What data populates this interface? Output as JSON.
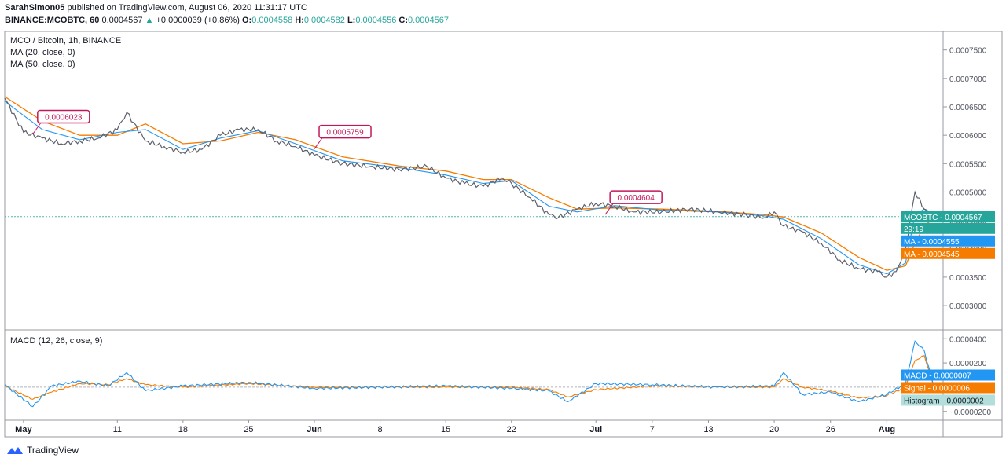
{
  "header": {
    "author": "SarahSimon05",
    "published_text": "published on TradingView.com, August 06, 2020 11:31:17 UTC",
    "symbol_line": "BINANCE:MCOBTC, 60",
    "last": "0.0004567",
    "change": "+0.0000039 (+0.86%)",
    "o_label": "O:",
    "o": "0.0004558",
    "h_label": "H:",
    "h": "0.0004582",
    "l_label": "L:",
    "l": "0.0004556",
    "c_label": "C:",
    "c": "0.0004567"
  },
  "legend": {
    "title": "MCO / Bitcoin, 1h, BINANCE",
    "ma20": "MA (20, close, 0)",
    "ma50": "MA (50, close, 0)",
    "macd": "MACD (12, 26, close, 9)"
  },
  "footer": {
    "brand": "TradingView"
  },
  "colors": {
    "price": "#26a69a",
    "ma20": "#2196f3",
    "ma50": "#f57c00",
    "callout": "#c2185b",
    "macd_label": "#2196f3",
    "signal_label": "#f57c00",
    "hist_label": "#b2dfdb",
    "last_label": "#26a69a"
  },
  "chart_data": [
    {
      "type": "line",
      "title": "MCO / Bitcoin, 1h, BINANCE",
      "x_ticks": [
        "May",
        "11",
        "18",
        "25",
        "Jun",
        "8",
        "15",
        "22",
        "Jul",
        "7",
        "13",
        "20",
        "26",
        "Aug"
      ],
      "y_ticks": [
        "0.0007500",
        "0.0007000",
        "0.0006500",
        "0.0006000",
        "0.0005500",
        "0.0005000",
        "0.0004500",
        "0.0004000",
        "0.0003500",
        "0.0003000"
      ],
      "ylim": [
        0.00026,
        0.00078
      ],
      "series": [
        {
          "name": "MCOBTC",
          "x": [
            "2020-04-29",
            "2020-05-01",
            "2020-05-03",
            "2020-05-05",
            "2020-05-07",
            "2020-05-09",
            "2020-05-11",
            "2020-05-12",
            "2020-05-14",
            "2020-05-16",
            "2020-05-18",
            "2020-05-20",
            "2020-05-22",
            "2020-05-24",
            "2020-05-26",
            "2020-05-28",
            "2020-05-30",
            "2020-06-01",
            "2020-06-04",
            "2020-06-07",
            "2020-06-10",
            "2020-06-13",
            "2020-06-15",
            "2020-06-17",
            "2020-06-19",
            "2020-06-21",
            "2020-06-22",
            "2020-06-24",
            "2020-06-26",
            "2020-06-27",
            "2020-06-29",
            "2020-07-01",
            "2020-07-03",
            "2020-07-05",
            "2020-07-08",
            "2020-07-11",
            "2020-07-14",
            "2020-07-17",
            "2020-07-19",
            "2020-07-20",
            "2020-07-21",
            "2020-07-23",
            "2020-07-25",
            "2020-07-27",
            "2020-07-29",
            "2020-07-31",
            "2020-08-01",
            "2020-08-02",
            "2020-08-03",
            "2020-08-04",
            "2020-08-05",
            "2020-08-06"
          ],
          "y": [
            0.000665,
            0.000605,
            0.000595,
            0.000585,
            0.00059,
            0.000595,
            0.00061,
            0.00064,
            0.00059,
            0.00058,
            0.00057,
            0.000575,
            0.0006,
            0.00061,
            0.00061,
            0.00059,
            0.00058,
            0.000565,
            0.00055,
            0.000545,
            0.00054,
            0.000545,
            0.000525,
            0.000515,
            0.00051,
            0.000525,
            0.000515,
            0.00049,
            0.00046,
            0.000455,
            0.00047,
            0.00048,
            0.000475,
            0.000465,
            0.000465,
            0.00047,
            0.000465,
            0.00046,
            0.000455,
            0.000465,
            0.00044,
            0.00043,
            0.00041,
            0.00038,
            0.000365,
            0.00036,
            0.00035,
            0.00036,
            0.0004,
            0.0005,
            0.00047,
            0.0004567
          ]
        },
        {
          "name": "MA",
          "x": [
            "2020-04-29",
            "2020-05-03",
            "2020-05-07",
            "2020-05-11",
            "2020-05-14",
            "2020-05-18",
            "2020-05-22",
            "2020-05-26",
            "2020-05-30",
            "2020-06-04",
            "2020-06-10",
            "2020-06-15",
            "2020-06-19",
            "2020-06-22",
            "2020-06-26",
            "2020-06-29",
            "2020-07-03",
            "2020-07-08",
            "2020-07-14",
            "2020-07-19",
            "2020-07-21",
            "2020-07-25",
            "2020-07-29",
            "2020-08-01",
            "2020-08-03",
            "2020-08-04",
            "2020-08-05",
            "2020-08-06"
          ],
          "y": [
            0.00066,
            0.00061,
            0.000592,
            0.000605,
            0.00061,
            0.000575,
            0.000595,
            0.000608,
            0.000585,
            0.000555,
            0.000543,
            0.00053,
            0.000515,
            0.00052,
            0.000475,
            0.000465,
            0.000476,
            0.000468,
            0.000465,
            0.000458,
            0.000452,
            0.000418,
            0.000372,
            0.000356,
            0.000375,
            0.00046,
            0.00047,
            0.0004555
          ]
        },
        {
          "name": "MA",
          "x": [
            "2020-04-29",
            "2020-05-03",
            "2020-05-07",
            "2020-05-11",
            "2020-05-14",
            "2020-05-18",
            "2020-05-22",
            "2020-05-26",
            "2020-05-30",
            "2020-06-04",
            "2020-06-10",
            "2020-06-15",
            "2020-06-19",
            "2020-06-22",
            "2020-06-26",
            "2020-06-29",
            "2020-07-03",
            "2020-07-08",
            "2020-07-14",
            "2020-07-19",
            "2020-07-21",
            "2020-07-25",
            "2020-07-29",
            "2020-08-01",
            "2020-08-03",
            "2020-08-04",
            "2020-08-05",
            "2020-08-06"
          ],
          "y": [
            0.000668,
            0.000625,
            0.0006,
            0.0006,
            0.00062,
            0.000585,
            0.00059,
            0.000605,
            0.000592,
            0.000562,
            0.000546,
            0.000537,
            0.000522,
            0.000522,
            0.00049,
            0.00047,
            0.000472,
            0.00047,
            0.000466,
            0.00046,
            0.000456,
            0.000428,
            0.000385,
            0.000362,
            0.00037,
            0.00041,
            0.00044,
            0.0004545
          ]
        }
      ],
      "annotations": [
        {
          "text": "0.0006023",
          "x": "2020-05-02",
          "y": 0.0006023
        },
        {
          "text": "0.0005759",
          "x": "2020-06-01",
          "y": 0.0005759
        },
        {
          "text": "0.0004604",
          "x": "2020-07-02",
          "y": 0.0004604
        }
      ],
      "price_labels": [
        {
          "name": "MCOBTC",
          "value": "0.0004567",
          "countdown": "29:19"
        },
        {
          "name": "MA",
          "value": "0.0004555"
        },
        {
          "name": "MA",
          "value": "0.0004545"
        }
      ]
    },
    {
      "type": "line",
      "title": "MACD (12, 26, close, 9)",
      "y_ticks": [
        "0.0000400",
        "0.0000200",
        "0.0000000",
        "-0.0000200"
      ],
      "ylim": [
        -2.6e-05,
        4.6e-05
      ],
      "series": [
        {
          "name": "MACD",
          "x": [
            "2020-04-29",
            "2020-05-02",
            "2020-05-04",
            "2020-05-07",
            "2020-05-10",
            "2020-05-12",
            "2020-05-14",
            "2020-05-18",
            "2020-05-25",
            "2020-06-01",
            "2020-06-08",
            "2020-06-15",
            "2020-06-22",
            "2020-06-26",
            "2020-06-28",
            "2020-07-01",
            "2020-07-07",
            "2020-07-14",
            "2020-07-20",
            "2020-07-21",
            "2020-07-23",
            "2020-07-26",
            "2020-07-29",
            "2020-08-01",
            "2020-08-03",
            "2020-08-04",
            "2020-08-05",
            "2020-08-06"
          ],
          "y": [
            2e-06,
            -1.6e-05,
            1e-06,
            5e-06,
            1e-06,
            1.2e-05,
            -3e-06,
            1e-06,
            4e-06,
            -1e-06,
            0.0,
            1e-06,
            -1e-06,
            -3e-06,
            -1.2e-05,
            3e-06,
            2e-06,
            0.0,
            1e-06,
            1.2e-05,
            -6e-06,
            -4e-06,
            -1.2e-05,
            -6e-06,
            3e-06,
            3.8e-05,
            3e-05,
            7e-07
          ]
        },
        {
          "name": "Signal",
          "x": [
            "2020-04-29",
            "2020-05-02",
            "2020-05-04",
            "2020-05-07",
            "2020-05-10",
            "2020-05-12",
            "2020-05-14",
            "2020-05-18",
            "2020-05-25",
            "2020-06-01",
            "2020-06-08",
            "2020-06-15",
            "2020-06-22",
            "2020-06-26",
            "2020-06-28",
            "2020-07-01",
            "2020-07-07",
            "2020-07-14",
            "2020-07-20",
            "2020-07-21",
            "2020-07-23",
            "2020-07-26",
            "2020-07-29",
            "2020-08-01",
            "2020-08-03",
            "2020-08-04",
            "2020-08-05",
            "2020-08-06"
          ],
          "y": [
            1e-06,
            -1e-05,
            -4e-06,
            3e-06,
            2e-06,
            7e-06,
            2e-06,
            0.0,
            3e-06,
            0.0,
            0.0,
            0.0,
            0.0,
            -2e-06,
            -8e-06,
            -2e-06,
            1e-06,
            0.0,
            0.0,
            7e-06,
            0.0,
            -3e-06,
            -9e-06,
            -7e-06,
            0.0,
            2.2e-05,
            2.6e-05,
            6e-07
          ]
        },
        {
          "name": "Histogram",
          "x": [
            "2020-08-06"
          ],
          "y": [
            2e-07
          ]
        }
      ],
      "price_labels": [
        {
          "name": "MACD",
          "value": "0.0000007"
        },
        {
          "name": "Signal",
          "value": "0.0000006"
        },
        {
          "name": "Histogram",
          "value": "0.0000002"
        }
      ]
    }
  ]
}
